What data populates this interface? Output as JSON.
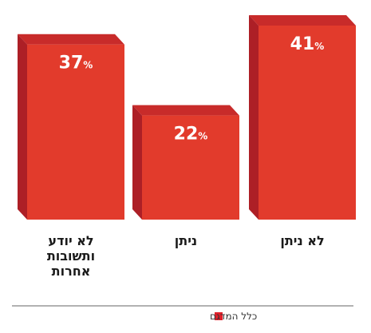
{
  "chart_data": {
    "type": "bar",
    "categories": [
      "לא יודע\nותשובות\nאחרות",
      "ניתן",
      "לא ניתן"
    ],
    "series": [
      {
        "name": "כלל המדגם",
        "values": [
          37,
          22,
          41
        ]
      }
    ],
    "value_suffix": "%",
    "ylim": [
      0,
      45
    ],
    "grid": false,
    "legend_position": "bottom-center",
    "bar_style": "3d"
  },
  "colors": {
    "bar_front": "#e23b2c",
    "bar_side": "#ad1f26",
    "bar_top": "#c82b2a",
    "axis_line": "#666666",
    "legend_swatch": "#e0212b"
  }
}
